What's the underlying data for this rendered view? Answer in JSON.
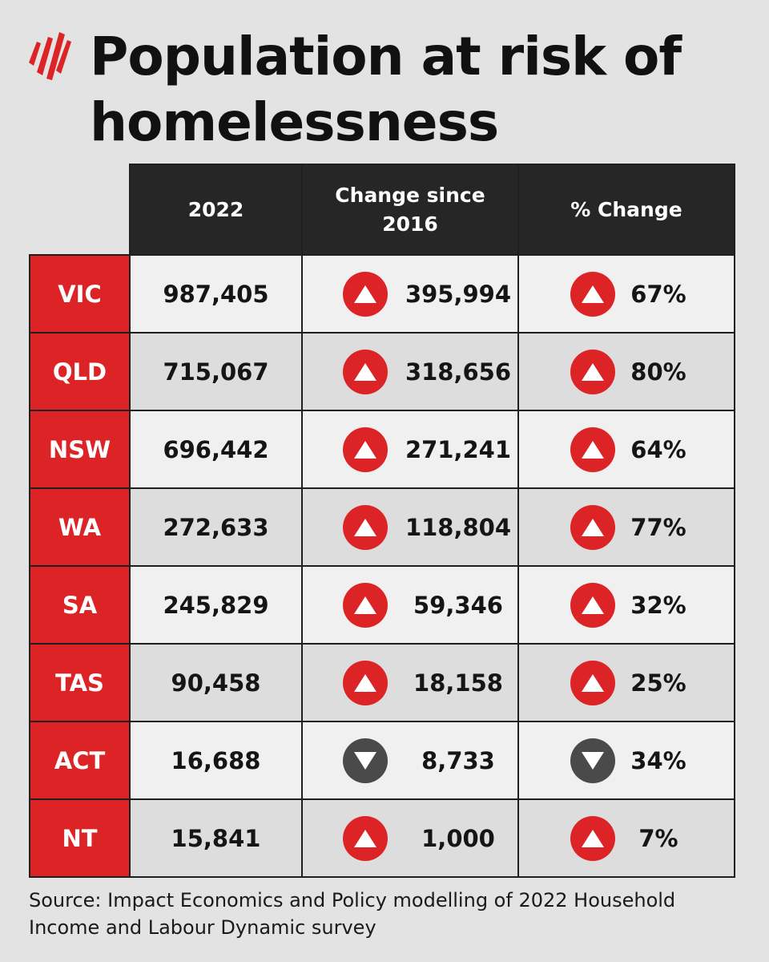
{
  "title": "Population at risk of homelessness",
  "logo": {
    "icon": "sbs-wing-logo",
    "color": "#dc2326"
  },
  "colors": {
    "accent": "#dc2326",
    "header": "#262626",
    "increase": "#dc2326",
    "decrease": "#4a4a4a"
  },
  "chart_data": {
    "type": "table",
    "columns": [
      "",
      "2022",
      "Change since 2016",
      "% Change"
    ],
    "rows": [
      {
        "state": "VIC",
        "value_2022": "987,405",
        "change": "395,994",
        "change_direction": "up",
        "pct": "67%",
        "pct_direction": "up"
      },
      {
        "state": "QLD",
        "value_2022": "715,067",
        "change": "318,656",
        "change_direction": "up",
        "pct": "80%",
        "pct_direction": "up"
      },
      {
        "state": "NSW",
        "value_2022": "696,442",
        "change": "271,241",
        "change_direction": "up",
        "pct": "64%",
        "pct_direction": "up"
      },
      {
        "state": "WA",
        "value_2022": "272,633",
        "change": "118,804",
        "change_direction": "up",
        "pct": "77%",
        "pct_direction": "up"
      },
      {
        "state": "SA",
        "value_2022": "245,829",
        "change": "59,346",
        "change_direction": "up",
        "pct": "32%",
        "pct_direction": "up"
      },
      {
        "state": "TAS",
        "value_2022": "90,458",
        "change": "18,158",
        "change_direction": "up",
        "pct": "25%",
        "pct_direction": "up"
      },
      {
        "state": "ACT",
        "value_2022": "16,688",
        "change": "8,733",
        "change_direction": "down",
        "pct": "34%",
        "pct_direction": "down"
      },
      {
        "state": "NT",
        "value_2022": "15,841",
        "change": "1,000",
        "change_direction": "up",
        "pct": "7%",
        "pct_direction": "up"
      }
    ]
  },
  "source": "Source: Impact Economics and Policy modelling of 2022 Household Income and Labour Dynamic survey"
}
